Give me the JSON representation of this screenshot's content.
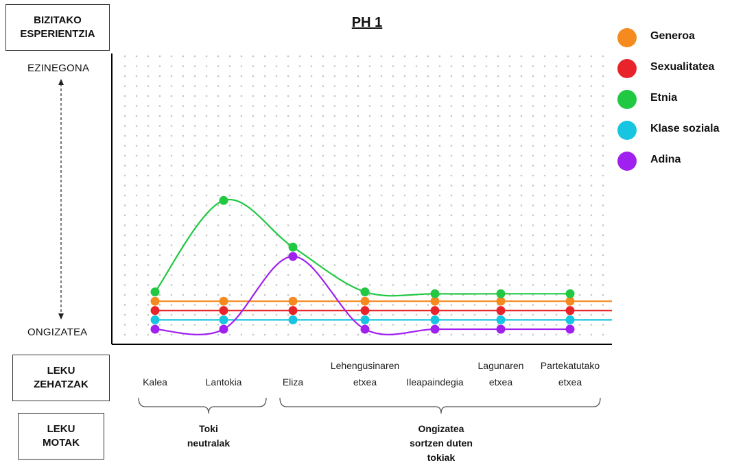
{
  "labels": {
    "top_box": [
      "BIZITAKO",
      "ESPERIENTZIA"
    ],
    "places_box": [
      "LEKU",
      "ZEHATZAK"
    ],
    "types_box": [
      "LEKU",
      "MOTAK"
    ]
  },
  "chart_data": {
    "type": "line",
    "title": "PH 1",
    "xlabel": "",
    "ylabel": "",
    "y_top_label": "EZINEGONA",
    "y_bottom_label": "ONGIZATEA",
    "ylim": [
      0,
      28
    ],
    "grid": "dotted",
    "legend_position": "top-right",
    "categories": [
      [
        "Kalea"
      ],
      [
        "Lantokia"
      ],
      [
        "Eliza"
      ],
      [
        "Lehengusinaren",
        "etxea"
      ],
      [
        "Ileapaindegia"
      ],
      [
        "Lagunaren",
        "etxea"
      ],
      [
        "Partekatutako",
        "etxea"
      ]
    ],
    "groups": [
      {
        "label": [
          "Toki",
          "neutralak"
        ],
        "from": 0,
        "to": 1
      },
      {
        "label": [
          "Ongizatea",
          "sortzen duten",
          "tokiak"
        ],
        "from": 2,
        "to": 6
      }
    ],
    "series": [
      {
        "name": "Generoa",
        "color": "#F58A1F",
        "values": [
          3,
          3,
          3,
          3,
          3,
          3,
          3
        ]
      },
      {
        "name": "Sexualitatea",
        "color": "#E8232A",
        "values": [
          2,
          2,
          2,
          2,
          2,
          2,
          2
        ]
      },
      {
        "name": "Etnia",
        "color": "#21C842",
        "values": [
          4,
          13.8,
          8.8,
          4,
          3.8,
          3.8,
          3.8
        ]
      },
      {
        "name": "Klase soziala",
        "color": "#17C5E0",
        "values": [
          1,
          1,
          1,
          1,
          1,
          1,
          1
        ]
      },
      {
        "name": "Adina",
        "color": "#A020F0",
        "values": [
          0,
          0,
          7.8,
          0,
          0,
          0,
          0
        ]
      }
    ]
  }
}
